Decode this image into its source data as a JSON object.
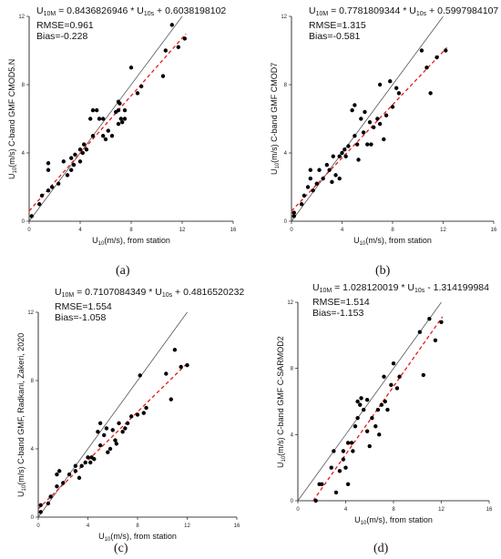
{
  "chart_data": [
    {
      "type": "scatter",
      "panel_label": "(a)",
      "equation": {
        "lhs_main": "U",
        "lhs_sub": "10M",
        "eq_a": " = 0.8436826946 * U",
        "x_sub": "10s",
        "eq_b": " + 0.6038198102"
      },
      "rmse": "RMSE=0.961",
      "bias": "Bias=-0.228",
      "xlabel": {
        "main": "U",
        "sub": "10",
        "rest": "(m/s), from station"
      },
      "ylabel": {
        "main": "U",
        "sub": "10",
        "rest": "(m/s) C-band GMF CMOD5.N"
      },
      "xlim": [
        0,
        16
      ],
      "ylim": [
        0,
        12
      ],
      "xticks": [
        "0",
        "4",
        "8",
        "12",
        "16"
      ],
      "yticks": [
        "0",
        "4",
        "8",
        "12"
      ],
      "fit": {
        "slope": 0.8436826946,
        "intercept": 0.6038198102
      },
      "points": [
        [
          0.2,
          0.3
        ],
        [
          0.8,
          1.0
        ],
        [
          1.0,
          1.5
        ],
        [
          1.5,
          1.8
        ],
        [
          1.5,
          3.0
        ],
        [
          1.5,
          3.4
        ],
        [
          1.8,
          2.0
        ],
        [
          2.3,
          2.2
        ],
        [
          2.7,
          3.5
        ],
        [
          3.0,
          2.7
        ],
        [
          3.3,
          3.0
        ],
        [
          3.3,
          3.7
        ],
        [
          3.5,
          3.3
        ],
        [
          3.6,
          3.9
        ],
        [
          4.0,
          3.5
        ],
        [
          4.0,
          4.2
        ],
        [
          4.2,
          4.0
        ],
        [
          4.3,
          4.5
        ],
        [
          4.5,
          4.2
        ],
        [
          4.8,
          6.0
        ],
        [
          5.0,
          5.0
        ],
        [
          5.0,
          6.5
        ],
        [
          5.3,
          6.5
        ],
        [
          5.5,
          6.0
        ],
        [
          5.8,
          6.0
        ],
        [
          5.8,
          5.0
        ],
        [
          6.0,
          4.8
        ],
        [
          6.2,
          5.3
        ],
        [
          6.5,
          5.0
        ],
        [
          6.8,
          6.4
        ],
        [
          7.0,
          5.7
        ],
        [
          7.0,
          6.5
        ],
        [
          7.1,
          6.9
        ],
        [
          7.2,
          6.0
        ],
        [
          7.3,
          5.8
        ],
        [
          7.5,
          6.0
        ],
        [
          7.0,
          7.0
        ],
        [
          7.5,
          6.5
        ],
        [
          8.0,
          9.0
        ],
        [
          8.5,
          7.5
        ],
        [
          8.8,
          7.9
        ],
        [
          10.5,
          8.5
        ],
        [
          10.7,
          10.0
        ],
        [
          11.2,
          11.5
        ],
        [
          11.7,
          10.2
        ],
        [
          12.2,
          10.7
        ]
      ]
    },
    {
      "type": "scatter",
      "panel_label": "(b)",
      "equation": {
        "lhs_main": "U",
        "lhs_sub": "10M",
        "eq_a": " = 0.7781809344 * U",
        "x_sub": "10s",
        "eq_b": " + 0.5997984107"
      },
      "rmse": "RMSE=1.315",
      "bias": "Bias=-0.581",
      "xlabel": {
        "main": "U",
        "sub": "10",
        "rest": "(m/s), from station"
      },
      "ylabel": {
        "main": "U",
        "sub": "10",
        "rest": "(m/s) C-band GMF CMOD7"
      },
      "xlim": [
        0,
        16
      ],
      "ylim": [
        0,
        12
      ],
      "xticks": [
        "0",
        "4",
        "8",
        "12",
        "16"
      ],
      "yticks": [
        "0",
        "4",
        "8",
        "12"
      ],
      "fit": {
        "slope": 0.7781809344,
        "intercept": 0.5997984107
      },
      "points": [
        [
          0.2,
          0.3
        ],
        [
          0.2,
          0.5
        ],
        [
          0.8,
          1.0
        ],
        [
          1.0,
          1.5
        ],
        [
          1.3,
          2.0
        ],
        [
          1.5,
          3.0
        ],
        [
          1.5,
          2.5
        ],
        [
          1.7,
          1.8
        ],
        [
          2.0,
          2.2
        ],
        [
          2.2,
          3.0
        ],
        [
          2.5,
          2.5
        ],
        [
          2.8,
          3.3
        ],
        [
          3.0,
          3.0
        ],
        [
          3.2,
          2.3
        ],
        [
          3.3,
          3.8
        ],
        [
          3.5,
          2.7
        ],
        [
          3.8,
          2.5
        ],
        [
          3.8,
          3.8
        ],
        [
          4.0,
          4.0
        ],
        [
          4.2,
          4.2
        ],
        [
          4.3,
          3.8
        ],
        [
          4.5,
          4.4
        ],
        [
          4.8,
          6.5
        ],
        [
          5.0,
          6.8
        ],
        [
          5.0,
          5.0
        ],
        [
          5.2,
          4.5
        ],
        [
          5.3,
          3.6
        ],
        [
          5.5,
          6.0
        ],
        [
          5.7,
          5.2
        ],
        [
          5.8,
          6.4
        ],
        [
          6.0,
          4.5
        ],
        [
          6.2,
          5.8
        ],
        [
          6.3,
          4.5
        ],
        [
          6.5,
          5.5
        ],
        [
          6.8,
          6.0
        ],
        [
          7.0,
          8.0
        ],
        [
          7.0,
          5.7
        ],
        [
          7.3,
          4.8
        ],
        [
          7.5,
          6.2
        ],
        [
          7.8,
          8.2
        ],
        [
          8.0,
          6.7
        ],
        [
          8.3,
          7.8
        ],
        [
          8.5,
          7.5
        ],
        [
          10.3,
          10.0
        ],
        [
          10.7,
          9.0
        ],
        [
          11.0,
          7.5
        ],
        [
          11.5,
          9.6
        ],
        [
          12.2,
          10.0
        ]
      ]
    },
    {
      "type": "scatter",
      "panel_label": "(c)",
      "equation": {
        "lhs_main": "U",
        "lhs_sub": "10M",
        "eq_a": " = 0.7107084349 * U",
        "x_sub": "10s",
        "eq_b": " + 0.4816520232"
      },
      "rmse": "RMSE=1.554",
      "bias": "Bias=-1.058",
      "xlabel": {
        "main": "U",
        "sub": "10",
        "rest": "(m/s), from station"
      },
      "ylabel": {
        "main": "U",
        "sub": "10",
        "rest": "(m/s) C-band GMF, Radkani, Zakeri, 2020"
      },
      "xlim": [
        0,
        16
      ],
      "ylim": [
        0,
        12
      ],
      "xticks": [
        "0",
        "4",
        "8",
        "12",
        "16"
      ],
      "yticks": [
        "0",
        "4",
        "8",
        "12"
      ],
      "fit": {
        "slope": 0.7107084349,
        "intercept": 0.4816520232
      },
      "points": [
        [
          0.2,
          0.3
        ],
        [
          0.2,
          0.7
        ],
        [
          0.8,
          0.8
        ],
        [
          1.0,
          1.2
        ],
        [
          1.5,
          1.8
        ],
        [
          1.5,
          2.5
        ],
        [
          1.7,
          2.7
        ],
        [
          2.0,
          2.0
        ],
        [
          2.5,
          2.5
        ],
        [
          3.0,
          2.7
        ],
        [
          3.0,
          3.0
        ],
        [
          3.3,
          2.3
        ],
        [
          3.5,
          3.0
        ],
        [
          3.8,
          3.2
        ],
        [
          4.0,
          3.5
        ],
        [
          4.2,
          3.2
        ],
        [
          4.3,
          3.5
        ],
        [
          4.5,
          3.4
        ],
        [
          4.8,
          5.0
        ],
        [
          5.0,
          4.2
        ],
        [
          5.0,
          5.5
        ],
        [
          5.3,
          4.8
        ],
        [
          5.5,
          5.2
        ],
        [
          5.6,
          3.8
        ],
        [
          5.8,
          4.0
        ],
        [
          6.0,
          5.1
        ],
        [
          6.2,
          4.5
        ],
        [
          6.3,
          4.3
        ],
        [
          6.5,
          5.5
        ],
        [
          6.8,
          5.0
        ],
        [
          7.0,
          5.2
        ],
        [
          7.2,
          5.5
        ],
        [
          7.5,
          5.9
        ],
        [
          8.0,
          6.0
        ],
        [
          8.2,
          8.3
        ],
        [
          8.5,
          6.1
        ],
        [
          8.7,
          6.4
        ],
        [
          10.3,
          8.4
        ],
        [
          10.7,
          6.9
        ],
        [
          11.0,
          9.8
        ],
        [
          11.5,
          8.8
        ],
        [
          12.0,
          8.9
        ]
      ]
    },
    {
      "type": "scatter",
      "panel_label": "(d)",
      "equation": {
        "lhs_main": "U",
        "lhs_sub": "10M",
        "eq_a": " = 1.028120019 * U",
        "x_sub": "10s",
        "eq_b": " - 1.314199984"
      },
      "rmse": "RMSE=1.514",
      "bias": "Bias=-1.153",
      "xlabel": {
        "main": "U",
        "sub": "10",
        "rest": "(m/s), from station"
      },
      "ylabel": {
        "main": "U",
        "sub": "10",
        "rest": "(m/s) C-band GMF C-SARMOD2"
      },
      "xlim": [
        0,
        16
      ],
      "ylim": [
        0,
        12
      ],
      "xticks": [
        "0",
        "4",
        "8",
        "12",
        "16"
      ],
      "yticks": [
        "0",
        "4",
        "8",
        "12"
      ],
      "fit": {
        "slope": 1.028120019,
        "intercept": -1.314199984
      },
      "points": [
        [
          1.5,
          0.0
        ],
        [
          1.8,
          1.0
        ],
        [
          2.0,
          1.0
        ],
        [
          2.8,
          2.0
        ],
        [
          3.0,
          3.0
        ],
        [
          3.2,
          0.5
        ],
        [
          3.5,
          1.8
        ],
        [
          3.8,
          2.5
        ],
        [
          3.8,
          3.0
        ],
        [
          4.0,
          2.0
        ],
        [
          4.2,
          3.5
        ],
        [
          4.2,
          1.0
        ],
        [
          4.5,
          3.5
        ],
        [
          4.6,
          3.0
        ],
        [
          4.8,
          4.5
        ],
        [
          5.0,
          5.0
        ],
        [
          5.0,
          6.0
        ],
        [
          5.2,
          5.8
        ],
        [
          5.3,
          6.2
        ],
        [
          5.5,
          5.5
        ],
        [
          5.8,
          6.1
        ],
        [
          5.8,
          4.2
        ],
        [
          6.0,
          3.3
        ],
        [
          6.2,
          5.0
        ],
        [
          6.5,
          4.5
        ],
        [
          6.7,
          5.5
        ],
        [
          6.8,
          4.0
        ],
        [
          7.0,
          5.8
        ],
        [
          7.2,
          7.5
        ],
        [
          7.3,
          6.0
        ],
        [
          7.5,
          5.5
        ],
        [
          7.8,
          7.0
        ],
        [
          8.0,
          8.3
        ],
        [
          8.3,
          6.8
        ],
        [
          8.5,
          7.5
        ],
        [
          10.2,
          10.2
        ],
        [
          10.5,
          7.6
        ],
        [
          11.0,
          11.0
        ],
        [
          11.5,
          9.7
        ],
        [
          12.0,
          10.8
        ]
      ]
    }
  ]
}
